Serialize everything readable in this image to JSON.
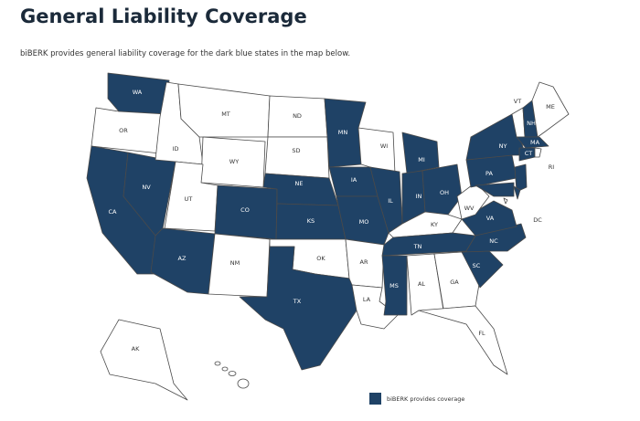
{
  "header": {
    "title": "General Liability Coverage",
    "subtitle": "biBERK provides general liability coverage for the dark blue states in the map below."
  },
  "map": {
    "covered_color": "#1f4266",
    "uncovered_color": "#ffffff",
    "border_color": "#4a4a4a",
    "states": [
      {
        "label": "WA",
        "covered": true
      },
      {
        "label": "OR",
        "covered": false
      },
      {
        "label": "CA",
        "covered": true
      },
      {
        "label": "NV",
        "covered": true
      },
      {
        "label": "ID",
        "covered": false
      },
      {
        "label": "MT",
        "covered": false
      },
      {
        "label": "WY",
        "covered": false
      },
      {
        "label": "UT",
        "covered": false
      },
      {
        "label": "CO",
        "covered": true
      },
      {
        "label": "AZ",
        "covered": true
      },
      {
        "label": "NM",
        "covered": false
      },
      {
        "label": "ND",
        "covered": false
      },
      {
        "label": "SD",
        "covered": false
      },
      {
        "label": "NE",
        "covered": true
      },
      {
        "label": "KS",
        "covered": true
      },
      {
        "label": "OK",
        "covered": false
      },
      {
        "label": "TX",
        "covered": true
      },
      {
        "label": "MN",
        "covered": true
      },
      {
        "label": "IA",
        "covered": true
      },
      {
        "label": "MO",
        "covered": true
      },
      {
        "label": "AR",
        "covered": false
      },
      {
        "label": "LA",
        "covered": false
      },
      {
        "label": "WI",
        "covered": false
      },
      {
        "label": "IL",
        "covered": true
      },
      {
        "label": "MI",
        "covered": true
      },
      {
        "label": "IN",
        "covered": true
      },
      {
        "label": "OH",
        "covered": true
      },
      {
        "label": "KY",
        "covered": false
      },
      {
        "label": "TN",
        "covered": true
      },
      {
        "label": "MS",
        "covered": true
      },
      {
        "label": "AL",
        "covered": false
      },
      {
        "label": "GA",
        "covered": false
      },
      {
        "label": "FL",
        "covered": false
      },
      {
        "label": "SC",
        "covered": true
      },
      {
        "label": "NC",
        "covered": true
      },
      {
        "label": "VA",
        "covered": true
      },
      {
        "label": "WV",
        "covered": false
      },
      {
        "label": "PA",
        "covered": true
      },
      {
        "label": "NY",
        "covered": true
      },
      {
        "label": "MD",
        "covered": true
      },
      {
        "label": "NJ",
        "covered": true
      },
      {
        "label": "DE",
        "covered": true
      },
      {
        "label": "DC",
        "covered": false
      },
      {
        "label": "VT",
        "covered": false
      },
      {
        "label": "NH",
        "covered": true
      },
      {
        "label": "ME",
        "covered": false
      },
      {
        "label": "MA",
        "covered": true
      },
      {
        "label": "CT",
        "covered": true
      },
      {
        "label": "RI",
        "covered": false
      },
      {
        "label": "AK",
        "covered": false
      }
    ],
    "legend": {
      "label": "biBERK provides coverage"
    }
  }
}
